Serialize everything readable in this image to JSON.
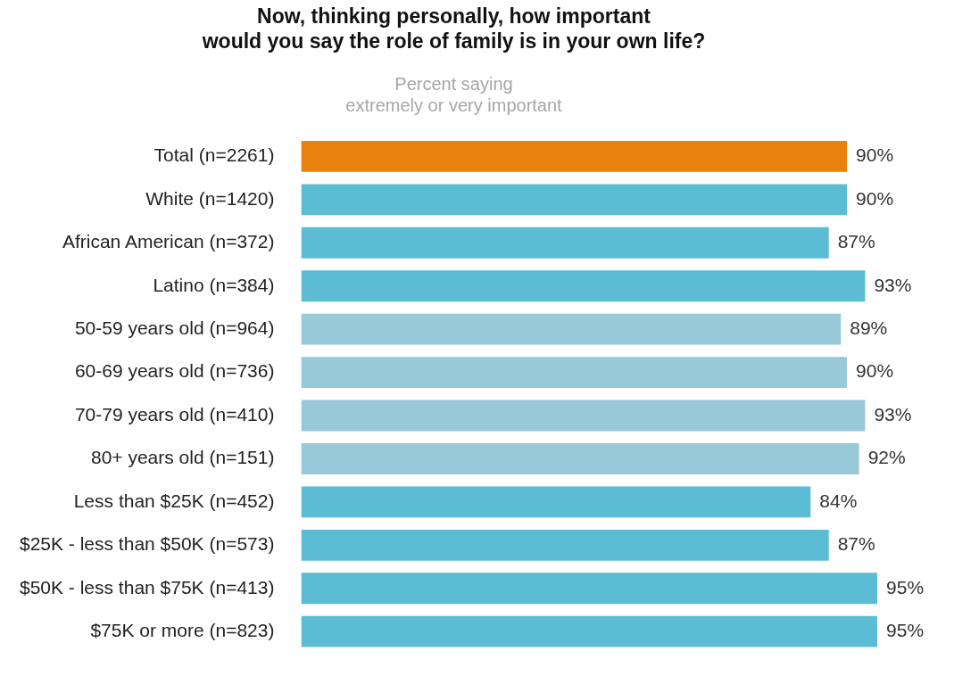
{
  "chart_data": {
    "type": "bar",
    "orientation": "horizontal",
    "title": "Now, thinking personally, how important\nwould you say the role of family is in your own life?",
    "subtitle": "Percent saying\nextremely or very important",
    "categories": [
      "Total (n=2261)",
      "White (n=1420)",
      "African American (n=372)",
      "Latino (n=384)",
      "50-59 years old (n=964)",
      "60-69 years old (n=736)",
      "70-79 years old (n=410)",
      "80+ years old (n=151)",
      "Less than $25K (n=452)",
      "$25K - less than $50K (n=573)",
      "$50K - less than $75K (n=413)",
      "$75K or more (n=823)"
    ],
    "values": [
      90,
      90,
      87,
      93,
      89,
      90,
      93,
      92,
      84,
      87,
      95,
      95
    ],
    "value_labels": [
      "90%",
      "90%",
      "87%",
      "93%",
      "89%",
      "90%",
      "93%",
      "92%",
      "84%",
      "87%",
      "95%",
      "95%"
    ],
    "colors": [
      "#e8820c",
      "#5bbcd3",
      "#5bbcd3",
      "#5bbcd3",
      "#98c9d8",
      "#98c9d8",
      "#98c9d8",
      "#98c9d8",
      "#5bbcd3",
      "#5bbcd3",
      "#5bbcd3",
      "#5bbcd3"
    ],
    "tick_labels": "y",
    "legend": false
  }
}
